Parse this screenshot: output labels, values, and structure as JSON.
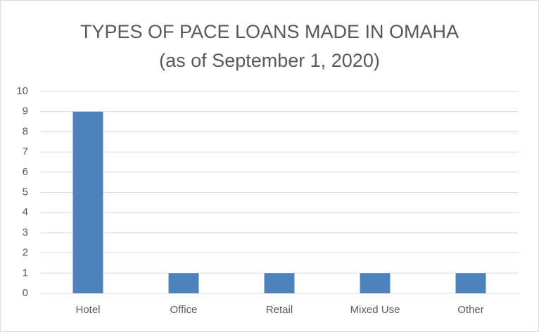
{
  "chart_data": {
    "type": "bar",
    "title": "TYPES OF PACE LOANS MADE IN OMAHA",
    "subtitle": "(as of September 1, 2020)",
    "categories": [
      "Hotel",
      "Office",
      "Retail",
      "Mixed Use",
      "Other"
    ],
    "values": [
      9,
      1,
      1,
      1,
      1
    ],
    "color": "#4f81bd",
    "ylim": [
      0,
      10
    ],
    "yticks": [
      0,
      1,
      2,
      3,
      4,
      5,
      6,
      7,
      8,
      9,
      10
    ],
    "grid": true
  }
}
